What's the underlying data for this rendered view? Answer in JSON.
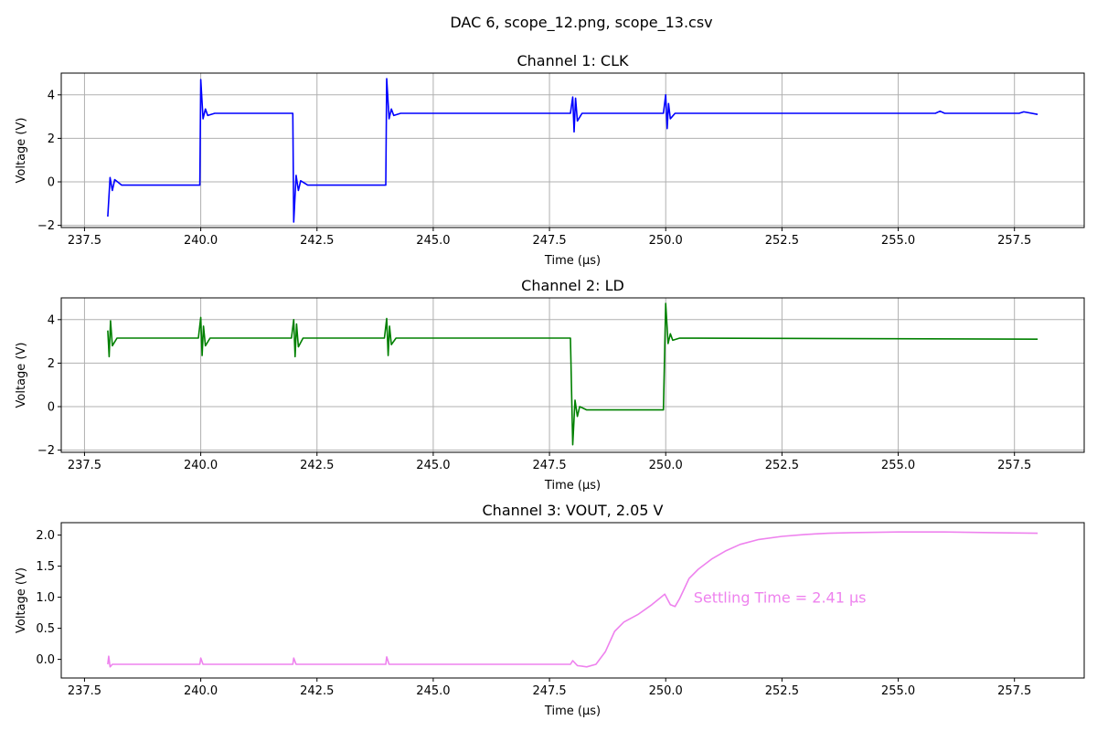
{
  "figure": {
    "suptitle": "DAC 6, scope_12.png, scope_13.csv"
  },
  "chart_data": [
    {
      "type": "line",
      "title": "Channel 1: CLK",
      "xlabel": "Time (µs)",
      "ylabel": "Voltage (V)",
      "xlim": [
        237.0,
        259.0
      ],
      "ylim": [
        -2.1,
        5.0
      ],
      "xticks": [
        237.5,
        240.0,
        242.5,
        245.0,
        247.5,
        250.0,
        252.5,
        255.0,
        257.5
      ],
      "xtick_labels": [
        "237.5",
        "240.0",
        "242.5",
        "245.0",
        "247.5",
        "250.0",
        "252.5",
        "255.0",
        "257.5"
      ],
      "yticks": [
        -2,
        0,
        2,
        4
      ],
      "ytick_labels": [
        "−2",
        "0",
        "2",
        "4"
      ],
      "grid": true,
      "series": [
        {
          "color": "#0000ff",
          "x": [
            238.0,
            238.05,
            238.1,
            238.15,
            238.3,
            239.98,
            240.0,
            240.05,
            240.1,
            240.15,
            240.3,
            241.98,
            242.0,
            242.05,
            242.1,
            242.15,
            242.3,
            243.98,
            244.0,
            244.05,
            244.1,
            244.15,
            244.3,
            247.95,
            248.0,
            248.03,
            248.06,
            248.1,
            248.2,
            249.95,
            250.0,
            250.03,
            250.06,
            250.1,
            250.2,
            255.8,
            255.9,
            256.0,
            257.6,
            257.7,
            258.0
          ],
          "y": [
            -1.6,
            0.2,
            -0.4,
            0.1,
            -0.15,
            -0.15,
            4.7,
            2.9,
            3.35,
            3.05,
            3.15,
            3.15,
            -1.85,
            0.3,
            -0.4,
            0.05,
            -0.15,
            -0.15,
            4.75,
            2.9,
            3.35,
            3.05,
            3.15,
            3.15,
            3.9,
            2.3,
            3.85,
            2.8,
            3.15,
            3.15,
            4.0,
            2.45,
            3.6,
            2.9,
            3.15,
            3.15,
            3.25,
            3.15,
            3.15,
            3.22,
            3.1
          ]
        }
      ]
    },
    {
      "type": "line",
      "title": "Channel 2: LD",
      "xlabel": "Time (µs)",
      "ylabel": "Voltage (V)",
      "xlim": [
        237.0,
        259.0
      ],
      "ylim": [
        -2.1,
        5.0
      ],
      "xticks": [
        237.5,
        240.0,
        242.5,
        245.0,
        247.5,
        250.0,
        252.5,
        255.0,
        257.5
      ],
      "xtick_labels": [
        "237.5",
        "240.0",
        "242.5",
        "245.0",
        "247.5",
        "250.0",
        "252.5",
        "255.0",
        "257.5"
      ],
      "yticks": [
        -2,
        0,
        2,
        4
      ],
      "ytick_labels": [
        "−2",
        "0",
        "2",
        "4"
      ],
      "grid": true,
      "series": [
        {
          "color": "#008000",
          "x": [
            238.0,
            238.03,
            238.06,
            238.1,
            238.2,
            239.95,
            240.0,
            240.03,
            240.06,
            240.1,
            240.2,
            241.95,
            242.0,
            242.03,
            242.06,
            242.1,
            242.2,
            243.95,
            244.0,
            244.03,
            244.06,
            244.1,
            244.2,
            247.95,
            248.0,
            248.05,
            248.1,
            248.15,
            248.3,
            249.95,
            250.0,
            250.05,
            250.1,
            250.15,
            250.3,
            258.0
          ],
          "y": [
            3.5,
            2.3,
            3.95,
            2.8,
            3.15,
            3.15,
            4.1,
            2.35,
            3.7,
            2.8,
            3.15,
            3.15,
            4.0,
            2.3,
            3.8,
            2.75,
            3.15,
            3.15,
            4.05,
            2.35,
            3.7,
            2.85,
            3.15,
            3.15,
            -1.75,
            0.3,
            -0.45,
            0.0,
            -0.15,
            -0.15,
            4.75,
            2.9,
            3.35,
            3.05,
            3.15,
            3.1
          ]
        }
      ]
    },
    {
      "type": "line",
      "title": "Channel 3: VOUT, 2.05 V",
      "xlabel": "Time (µs)",
      "ylabel": "Voltage (V)",
      "xlim": [
        237.0,
        259.0
      ],
      "ylim": [
        -0.3,
        2.2
      ],
      "xticks": [
        237.5,
        240.0,
        242.5,
        245.0,
        247.5,
        250.0,
        252.5,
        255.0,
        257.5
      ],
      "xtick_labels": [
        "237.5",
        "240.0",
        "242.5",
        "245.0",
        "247.5",
        "250.0",
        "252.5",
        "255.0",
        "257.5"
      ],
      "yticks": [
        0.0,
        0.5,
        1.0,
        1.5,
        2.0
      ],
      "ytick_labels": [
        "0.0",
        "0.5",
        "1.0",
        "1.5",
        "2.0"
      ],
      "grid": false,
      "annotation": {
        "text": "Settling Time = 2.41 µs",
        "x": 250.6,
        "y": 1.0,
        "color": "#ee82ee"
      },
      "series": [
        {
          "color": "#ee82ee",
          "x": [
            238.0,
            238.02,
            238.05,
            238.1,
            239.98,
            240.0,
            240.05,
            241.98,
            242.0,
            242.05,
            243.98,
            244.0,
            244.05,
            247.95,
            248.0,
            248.1,
            248.3,
            248.5,
            248.7,
            248.9,
            249.1,
            249.4,
            249.7,
            249.98,
            250.1,
            250.2,
            250.3,
            250.5,
            250.7,
            251.0,
            251.3,
            251.6,
            252.0,
            252.5,
            253.0,
            253.5,
            254.0,
            255.0,
            256.0,
            257.0,
            258.0
          ],
          "y": [
            -0.08,
            0.05,
            -0.12,
            -0.08,
            -0.08,
            0.02,
            -0.08,
            -0.08,
            0.02,
            -0.08,
            -0.08,
            0.04,
            -0.08,
            -0.08,
            -0.02,
            -0.1,
            -0.12,
            -0.08,
            0.12,
            0.45,
            0.6,
            0.72,
            0.88,
            1.05,
            0.88,
            0.85,
            0.98,
            1.3,
            1.45,
            1.62,
            1.75,
            1.85,
            1.93,
            1.98,
            2.01,
            2.03,
            2.04,
            2.05,
            2.05,
            2.04,
            2.03
          ]
        }
      ]
    }
  ]
}
